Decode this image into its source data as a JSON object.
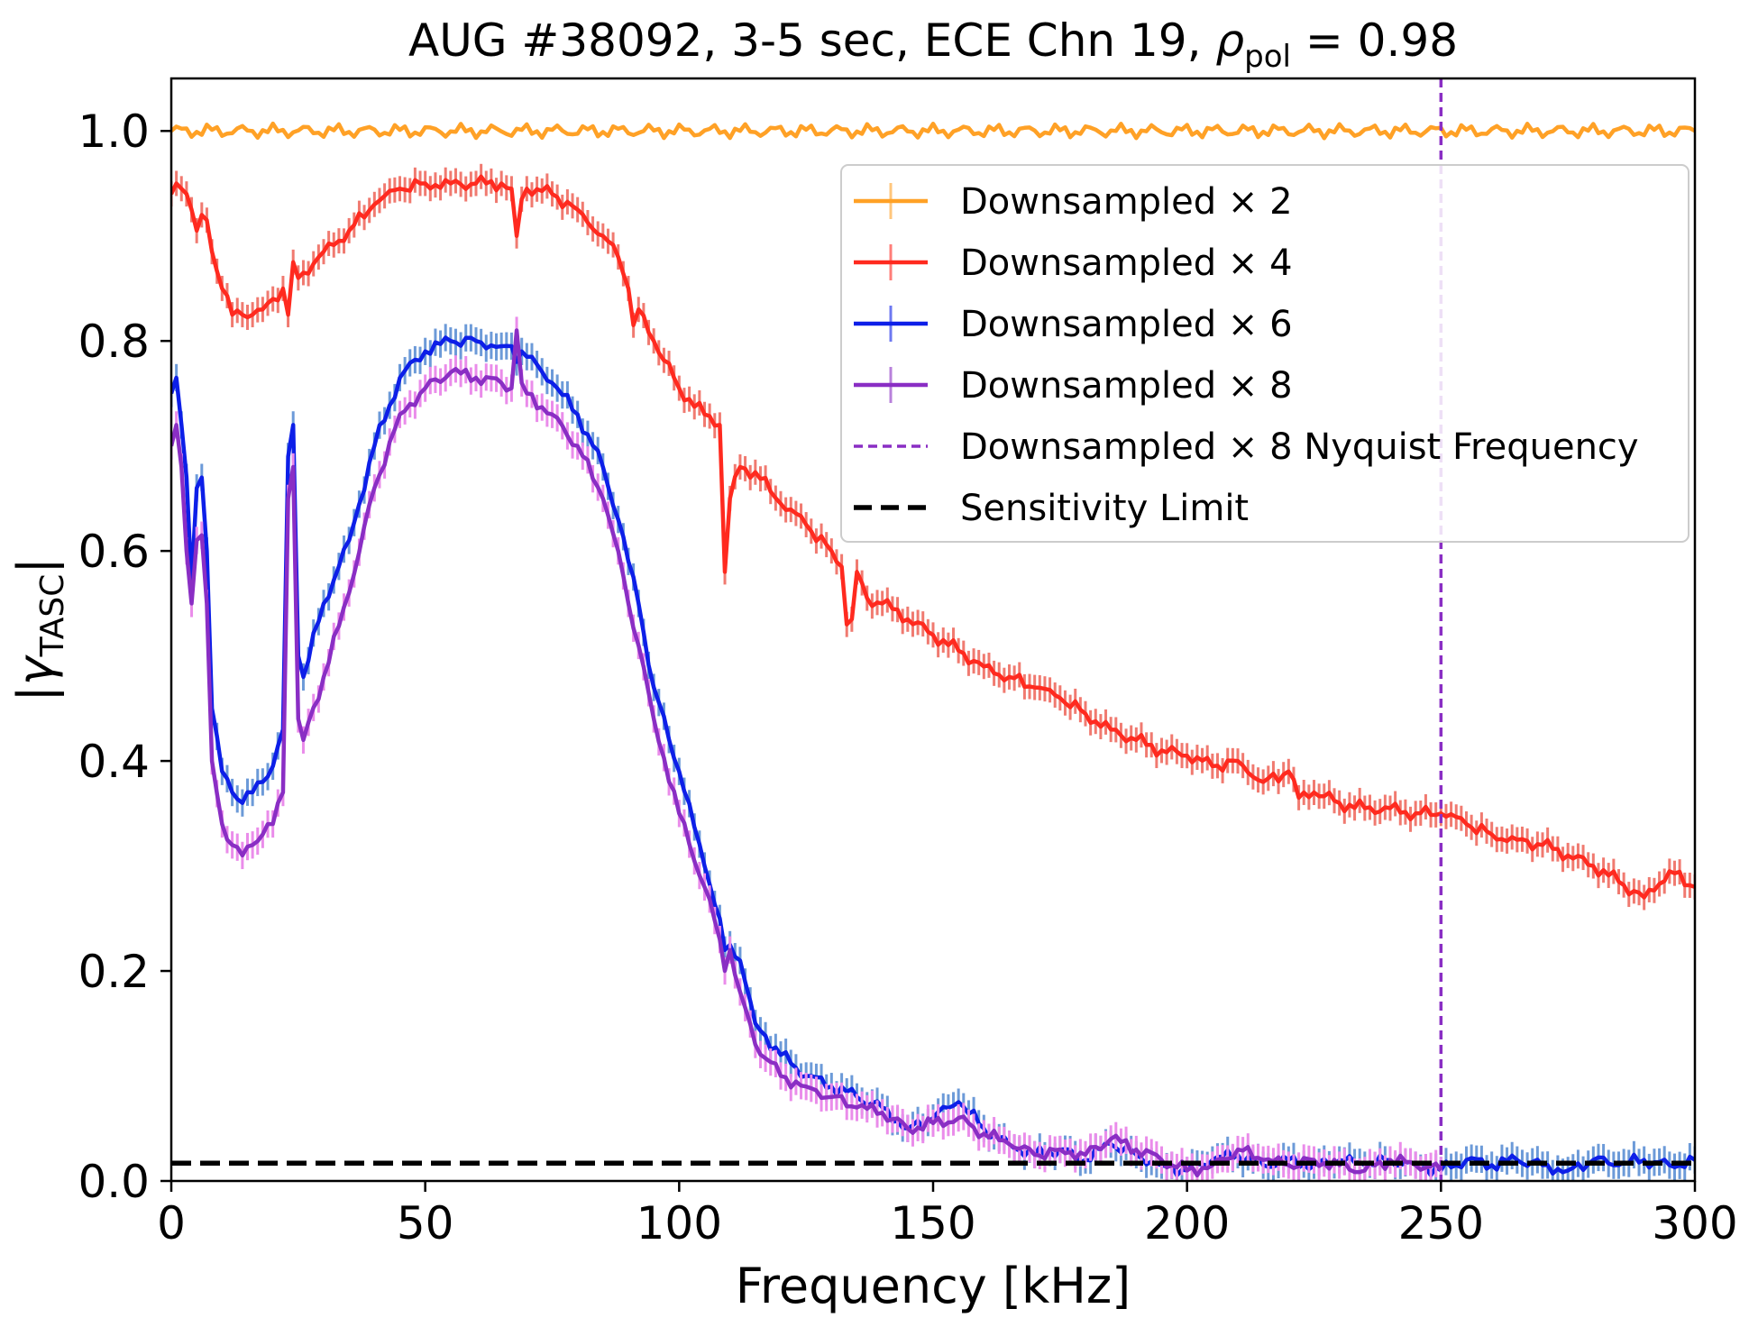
{
  "chart_data": {
    "type": "line",
    "title": "AUG #38092, 3-5 sec, ECE Chn 19, ",
    "title_math": {
      "symbol": "ρ",
      "subscript": "pol",
      "value": " = 0.98"
    },
    "xlabel": "Frequency [kHz]",
    "ylabel": {
      "symbol": "|γ",
      "subscript": "TASC",
      "suffix": "|"
    },
    "xlim": [
      0,
      300
    ],
    "ylim": [
      0,
      1.05
    ],
    "xticks": [
      0,
      50,
      100,
      150,
      200,
      250,
      300
    ],
    "xtick_labels": [
      "0",
      "50",
      "100",
      "150",
      "200",
      "250",
      "300"
    ],
    "yticks": [
      0.0,
      0.2,
      0.4,
      0.6,
      0.8,
      1.0
    ],
    "ytick_labels": [
      "0.0",
      "0.2",
      "0.4",
      "0.6",
      "0.8",
      "1.0"
    ],
    "grid": false,
    "legend_position": "upper-right",
    "series": [
      {
        "name": "Downsampled × 2",
        "color": "#ffa126",
        "err_color": "#ffc36e",
        "x": [
          0,
          300
        ],
        "y": [
          1.0,
          1.0
        ],
        "err": [
          0,
          0
        ]
      },
      {
        "name": "Downsampled × 4",
        "color": "#ff2a1f",
        "err_color": "#f07a70",
        "x": [
          0,
          1,
          2,
          3,
          4,
          5,
          6,
          7,
          8,
          10,
          12,
          14,
          16,
          18,
          20,
          22,
          23,
          24,
          25,
          26,
          30,
          35,
          40,
          45,
          50,
          55,
          60,
          65,
          67,
          68,
          69,
          70,
          75,
          80,
          85,
          88,
          90,
          91,
          92,
          95,
          100,
          105,
          108,
          109,
          110,
          112,
          115,
          120,
          125,
          130,
          132,
          133,
          134,
          135,
          137,
          140,
          145,
          150,
          155,
          160,
          165,
          170,
          175,
          180,
          185,
          190,
          195,
          200,
          205,
          210,
          215,
          220,
          222,
          225,
          230,
          235,
          240,
          245,
          250,
          255,
          260,
          265,
          270,
          275,
          280,
          285,
          290,
          295,
          300
        ],
        "y": [
          0.94,
          0.95,
          0.945,
          0.94,
          0.925,
          0.905,
          0.92,
          0.915,
          0.885,
          0.85,
          0.825,
          0.825,
          0.825,
          0.83,
          0.84,
          0.85,
          0.825,
          0.875,
          0.86,
          0.865,
          0.885,
          0.905,
          0.93,
          0.945,
          0.95,
          0.95,
          0.95,
          0.95,
          0.945,
          0.9,
          0.935,
          0.945,
          0.94,
          0.925,
          0.9,
          0.88,
          0.85,
          0.815,
          0.83,
          0.8,
          0.755,
          0.73,
          0.72,
          0.58,
          0.65,
          0.68,
          0.675,
          0.645,
          0.625,
          0.6,
          0.585,
          0.53,
          0.535,
          0.58,
          0.555,
          0.55,
          0.535,
          0.52,
          0.505,
          0.49,
          0.48,
          0.47,
          0.46,
          0.445,
          0.43,
          0.42,
          0.41,
          0.405,
          0.395,
          0.4,
          0.38,
          0.39,
          0.365,
          0.37,
          0.36,
          0.355,
          0.355,
          0.35,
          0.35,
          0.34,
          0.33,
          0.325,
          0.32,
          0.31,
          0.3,
          0.285,
          0.27,
          0.295,
          0.28
        ],
        "err": 0.012
      },
      {
        "name": "Downsampled × 6",
        "color": "#0d1fe8",
        "err_color": "#6c9ad8",
        "x": [
          0,
          1,
          2,
          3,
          4,
          5,
          6,
          7,
          8,
          10,
          12,
          14,
          16,
          18,
          20,
          22,
          23,
          24,
          25,
          26,
          30,
          35,
          40,
          45,
          50,
          55,
          60,
          65,
          67,
          68,
          69,
          70,
          75,
          80,
          85,
          88,
          90,
          92,
          95,
          100,
          105,
          108,
          109,
          110,
          112,
          115,
          120,
          125,
          130,
          135,
          140,
          145,
          150,
          155,
          160,
          165,
          170,
          175,
          180,
          185,
          190,
          195,
          200,
          205,
          210,
          215,
          220,
          225,
          230,
          235,
          240,
          245,
          250,
          255,
          260,
          265,
          270,
          275,
          280,
          285,
          290,
          295,
          300
        ],
        "y": [
          0.75,
          0.765,
          0.72,
          0.67,
          0.57,
          0.66,
          0.67,
          0.6,
          0.45,
          0.39,
          0.37,
          0.36,
          0.37,
          0.38,
          0.395,
          0.43,
          0.69,
          0.72,
          0.5,
          0.48,
          0.55,
          0.61,
          0.7,
          0.765,
          0.79,
          0.8,
          0.8,
          0.795,
          0.795,
          0.78,
          0.79,
          0.785,
          0.76,
          0.73,
          0.68,
          0.63,
          0.59,
          0.55,
          0.47,
          0.39,
          0.3,
          0.25,
          0.22,
          0.225,
          0.21,
          0.15,
          0.12,
          0.1,
          0.09,
          0.08,
          0.07,
          0.05,
          0.06,
          0.075,
          0.05,
          0.035,
          0.025,
          0.03,
          0.02,
          0.035,
          0.025,
          0.015,
          0.01,
          0.02,
          0.025,
          0.015,
          0.02,
          0.015,
          0.02,
          0.015,
          0.02,
          0.015,
          0.01,
          0.02,
          0.015,
          0.02,
          0.015,
          0.01,
          0.02,
          0.015,
          0.02,
          0.015,
          0.02
        ],
        "err": 0.013
      },
      {
        "name": "Downsampled × 8",
        "color": "#8a2ec4",
        "err_color": "#ea8cea",
        "x": [
          0,
          1,
          2,
          3,
          4,
          5,
          6,
          7,
          8,
          10,
          12,
          14,
          16,
          18,
          20,
          22,
          23,
          24,
          25,
          26,
          30,
          35,
          40,
          45,
          50,
          55,
          60,
          65,
          67,
          68,
          69,
          70,
          75,
          80,
          85,
          88,
          90,
          92,
          95,
          100,
          105,
          108,
          109,
          110,
          112,
          115,
          120,
          125,
          130,
          135,
          140,
          145,
          150,
          155,
          160,
          165,
          170,
          175,
          180,
          185,
          190,
          195,
          200,
          205,
          210,
          215,
          220,
          225,
          230,
          235,
          240,
          245,
          250
        ],
        "y": [
          0.7,
          0.72,
          0.68,
          0.6,
          0.55,
          0.61,
          0.615,
          0.55,
          0.4,
          0.34,
          0.32,
          0.31,
          0.32,
          0.33,
          0.34,
          0.37,
          0.65,
          0.68,
          0.44,
          0.42,
          0.48,
          0.56,
          0.66,
          0.73,
          0.755,
          0.77,
          0.765,
          0.76,
          0.755,
          0.81,
          0.76,
          0.75,
          0.73,
          0.7,
          0.65,
          0.6,
          0.55,
          0.51,
          0.44,
          0.35,
          0.28,
          0.23,
          0.2,
          0.22,
          0.18,
          0.13,
          0.1,
          0.09,
          0.08,
          0.07,
          0.065,
          0.05,
          0.055,
          0.06,
          0.045,
          0.035,
          0.025,
          0.03,
          0.025,
          0.04,
          0.03,
          0.02,
          0.01,
          0.015,
          0.03,
          0.02,
          0.015,
          0.02,
          0.015,
          0.01,
          0.02,
          0.015,
          0.01
        ],
        "err": 0.013
      }
    ],
    "nyquist": {
      "name": "Downsampled × 8 Nyquist Frequency",
      "x": 250,
      "color": "#8a2ec4"
    },
    "sensitivity": {
      "name": "Sensitivity Limit",
      "y": 0.017,
      "color": "#000000"
    }
  }
}
